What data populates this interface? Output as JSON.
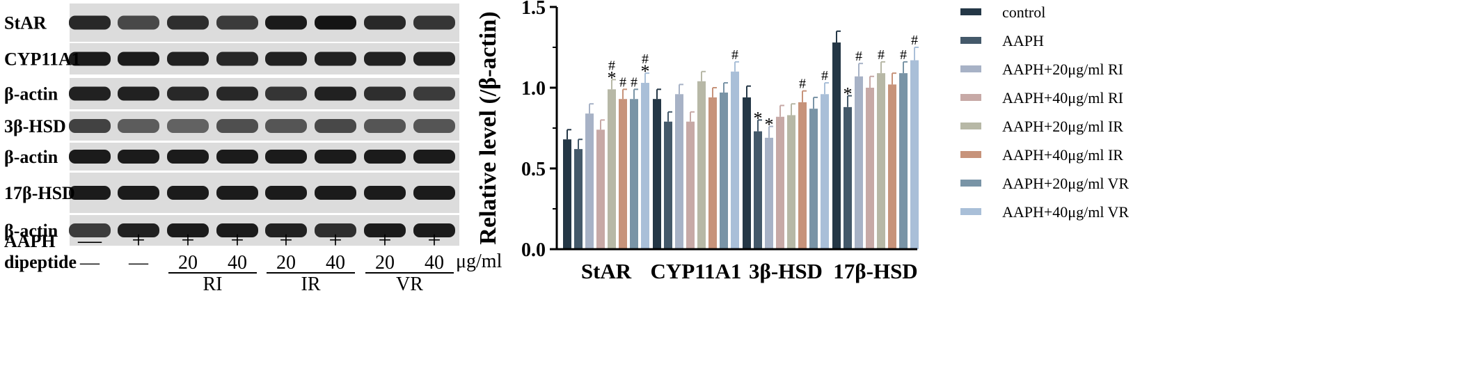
{
  "blot": {
    "bands": [
      {
        "label": "StAR",
        "intensity": [
          0.85,
          0.6,
          0.8,
          0.7,
          0.95,
          1.0,
          0.85,
          0.75
        ]
      },
      {
        "label": "CYP11A1",
        "intensity": [
          0.95,
          0.95,
          0.9,
          0.85,
          0.9,
          0.9,
          0.9,
          0.9
        ]
      },
      {
        "label": "β-actin",
        "intensity": [
          0.9,
          0.9,
          0.85,
          0.85,
          0.75,
          0.9,
          0.8,
          0.7
        ]
      },
      {
        "label": "3β-HSD",
        "intensity": [
          0.65,
          0.45,
          0.4,
          0.55,
          0.5,
          0.6,
          0.5,
          0.5
        ]
      },
      {
        "label": "β-actin",
        "intensity": [
          0.95,
          0.95,
          0.95,
          0.95,
          0.95,
          0.95,
          0.95,
          0.95
        ]
      },
      {
        "label": "17β-HSD",
        "intensity": [
          0.95,
          0.95,
          0.95,
          0.95,
          0.95,
          0.95,
          0.95,
          0.95
        ]
      },
      {
        "label": "β-actin",
        "intensity": [
          0.7,
          0.9,
          0.95,
          0.95,
          0.9,
          0.8,
          0.95,
          0.95
        ]
      }
    ],
    "aaph_label": "AAPH",
    "aaph_signs": [
      "—",
      "+",
      "+",
      "+",
      "+",
      "+",
      "+",
      "+"
    ],
    "dipeptide_label": "dipeptide",
    "dipeptide_values": [
      "—",
      "—",
      "20",
      "40",
      "20",
      "40",
      "20",
      "40"
    ],
    "unit": "μg/ml",
    "peptide_groups": [
      {
        "label": "RI",
        "lanes": [
          2,
          3
        ]
      },
      {
        "label": "IR",
        "lanes": [
          4,
          5
        ]
      },
      {
        "label": "VR",
        "lanes": [
          6,
          7
        ]
      }
    ]
  },
  "chart_data": {
    "type": "bar",
    "title": "",
    "xlabel": "",
    "ylabel": "Relative level (/β-actin)",
    "ylim": [
      0,
      1.5
    ],
    "yticks": [
      "0.0",
      "0.5",
      "1.0",
      "1.5"
    ],
    "grid": false,
    "legend_position": "right",
    "categories": [
      "StAR",
      "CYP11A1",
      "3β-HSD",
      "17β-HSD"
    ],
    "series": [
      {
        "name": "control",
        "color": "#243746",
        "values": [
          0.68,
          0.93,
          0.94,
          1.28
        ],
        "errors": [
          0.06,
          0.06,
          0.07,
          0.07
        ],
        "marks": [
          "",
          "",
          "",
          ""
        ]
      },
      {
        "name": "AAPH",
        "color": "#44596a",
        "values": [
          0.62,
          0.79,
          0.73,
          0.88
        ],
        "errors": [
          0.06,
          0.06,
          0.07,
          0.07
        ],
        "marks": [
          "",
          "",
          "*",
          "*"
        ]
      },
      {
        "name": "AAPH+20μg/ml RI",
        "color": "#a7b2c6",
        "values": [
          0.84,
          0.96,
          0.69,
          1.07
        ],
        "errors": [
          0.06,
          0.06,
          0.07,
          0.08
        ],
        "marks": [
          "",
          "",
          "*",
          "#"
        ]
      },
      {
        "name": "AAPH+40μg/ml RI",
        "color": "#c7a9a6",
        "values": [
          0.74,
          0.79,
          0.82,
          1.0
        ],
        "errors": [
          0.06,
          0.06,
          0.07,
          0.07
        ],
        "marks": [
          "",
          "",
          "",
          ""
        ]
      },
      {
        "name": "AAPH+20μg/ml IR",
        "color": "#b7b8a6",
        "values": [
          0.99,
          1.04,
          0.83,
          1.09
        ],
        "errors": [
          0.06,
          0.06,
          0.07,
          0.07
        ],
        "marks": [
          "#*",
          "",
          "",
          "#"
        ]
      },
      {
        "name": "AAPH+40μg/ml IR",
        "color": "#c7937a",
        "values": [
          0.93,
          0.94,
          0.91,
          1.02
        ],
        "errors": [
          0.06,
          0.06,
          0.07,
          0.07
        ],
        "marks": [
          "#",
          "",
          "#",
          ""
        ]
      },
      {
        "name": "AAPH+20μg/ml VR",
        "color": "#7994a6",
        "values": [
          0.93,
          0.97,
          0.87,
          1.09
        ],
        "errors": [
          0.06,
          0.06,
          0.07,
          0.07
        ],
        "marks": [
          "#",
          "",
          "",
          "#"
        ]
      },
      {
        "name": "AAPH+40μg/ml VR",
        "color": "#a9bfd8",
        "values": [
          1.03,
          1.1,
          0.96,
          1.17
        ],
        "errors": [
          0.06,
          0.06,
          0.07,
          0.08
        ],
        "marks": [
          "#*",
          "#",
          "#",
          "#"
        ]
      }
    ]
  }
}
